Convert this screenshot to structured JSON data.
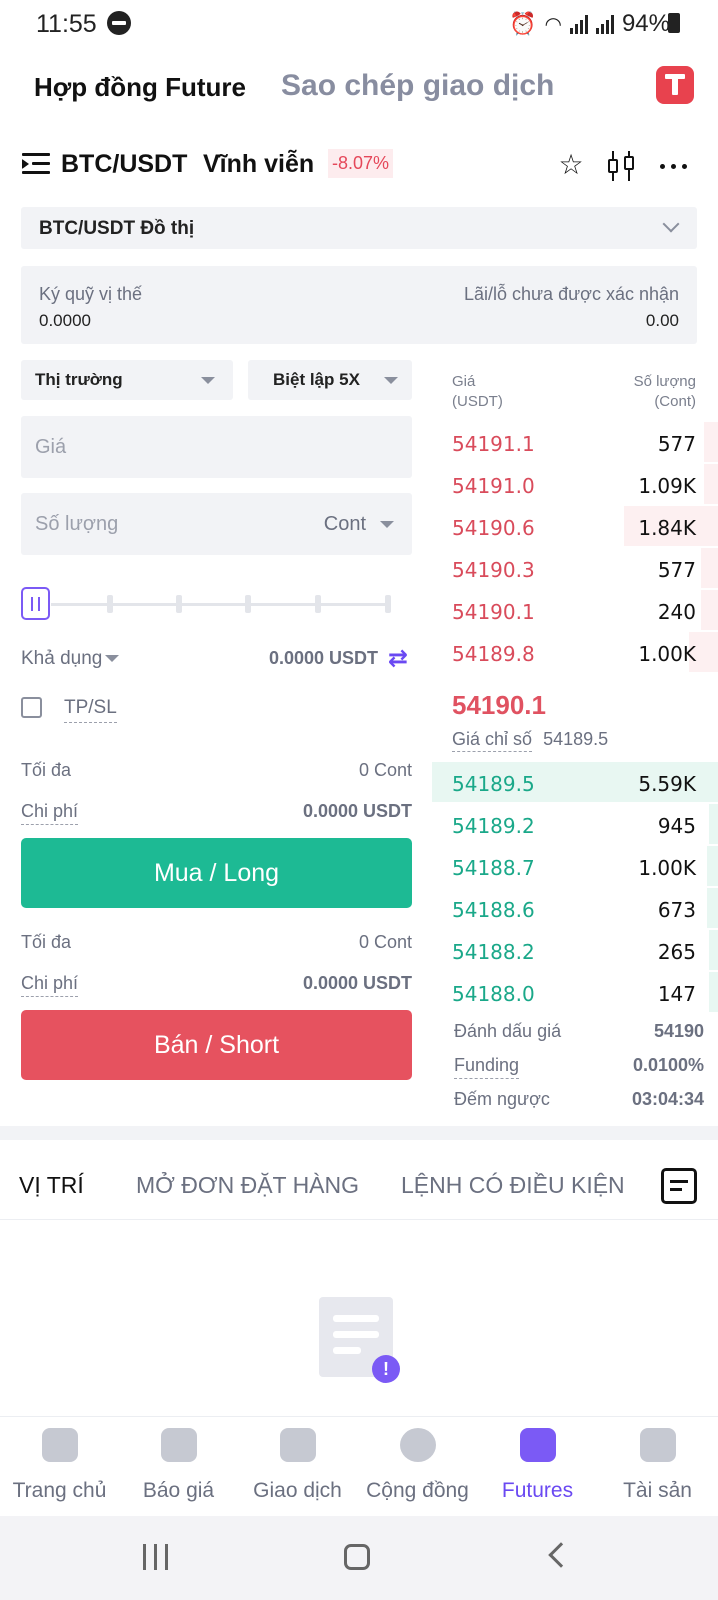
{
  "status_bar": {
    "time": "11:55",
    "battery": "94%"
  },
  "top_tabs": {
    "futures": "Hợp đồng Future",
    "copy_trade": "Sao chép giao dịch"
  },
  "pair": {
    "symbol": "BTC/USDT",
    "type": "Vĩnh viễn",
    "change": "-8.07%"
  },
  "chart_selector": {
    "label": "BTC/USDT Đồ thị"
  },
  "margin": {
    "position_margin_label": "Ký quỹ vị thế",
    "position_margin_value": "0.0000",
    "unrealized_pnl_label": "Lãi/lỗ chưa được xác nhận",
    "unrealized_pnl_value": "0.00"
  },
  "order_form": {
    "order_type": "Thị trường",
    "leverage": "Biệt lập 5X",
    "price_placeholder": "Giá",
    "quantity_placeholder": "Số lượng",
    "quantity_unit": "Cont",
    "available_label": "Khả dụng",
    "available_value": "0.0000 USDT",
    "tpsl_label": "TP/SL",
    "buy": {
      "max_label": "Tối đa",
      "max_value": "0 Cont",
      "cost_label": "Chi phí",
      "cost_value": "0.0000 USDT",
      "button": "Mua / Long"
    },
    "sell": {
      "max_label": "Tối đa",
      "max_value": "0 Cont",
      "cost_label": "Chi phí",
      "cost_value": "0.0000 USDT",
      "button": "Bán / Short"
    }
  },
  "order_book": {
    "price_header": "Giá",
    "price_unit": "(USDT)",
    "qty_header": "Số lượng",
    "qty_unit": "(Cont)",
    "asks": [
      {
        "price": "54191.1",
        "qty": "577",
        "depth": 0.05
      },
      {
        "price": "54191.0",
        "qty": "1.09K",
        "depth": 0.05
      },
      {
        "price": "54190.6",
        "qty": "1.84K",
        "depth": 0.33
      },
      {
        "price": "54190.3",
        "qty": "577",
        "depth": 0.06
      },
      {
        "price": "54190.1",
        "qty": "240",
        "depth": 0.06
      },
      {
        "price": "54189.8",
        "qty": "1.00K",
        "depth": 0.1
      }
    ],
    "last_price": "54190.1",
    "index_label": "Giá chỉ số",
    "index_value": "54189.5",
    "bids": [
      {
        "price": "54189.5",
        "qty": "5.59K",
        "depth": 1.0
      },
      {
        "price": "54189.2",
        "qty": "945",
        "depth": 0.03
      },
      {
        "price": "54188.7",
        "qty": "1.00K",
        "depth": 0.04
      },
      {
        "price": "54188.6",
        "qty": "673",
        "depth": 0.04
      },
      {
        "price": "54188.2",
        "qty": "265",
        "depth": 0.03
      },
      {
        "price": "54188.0",
        "qty": "147",
        "depth": 0.03
      }
    ],
    "mark_price_label": "Đánh dấu giá",
    "mark_price_value": "54190",
    "funding_label": "Funding",
    "funding_value": "0.0100%",
    "countdown_label": "Đếm ngược",
    "countdown_value": "03:04:34"
  },
  "position_tabs": [
    "VỊ TRÍ",
    "MỞ ĐƠN ĐẶT HÀNG",
    "LỆNH CÓ ĐIỀU KIỆN"
  ],
  "bottom_nav": [
    "Trang chủ",
    "Báo giá",
    "Giao dịch",
    "Cộng đồng",
    "Futures",
    "Tài sản"
  ],
  "colors": {
    "buy": "#1dba94",
    "sell": "#e6525f",
    "accent": "#7b5af5",
    "ask_text": "#d94b5b",
    "bid_text": "#1aa889"
  }
}
